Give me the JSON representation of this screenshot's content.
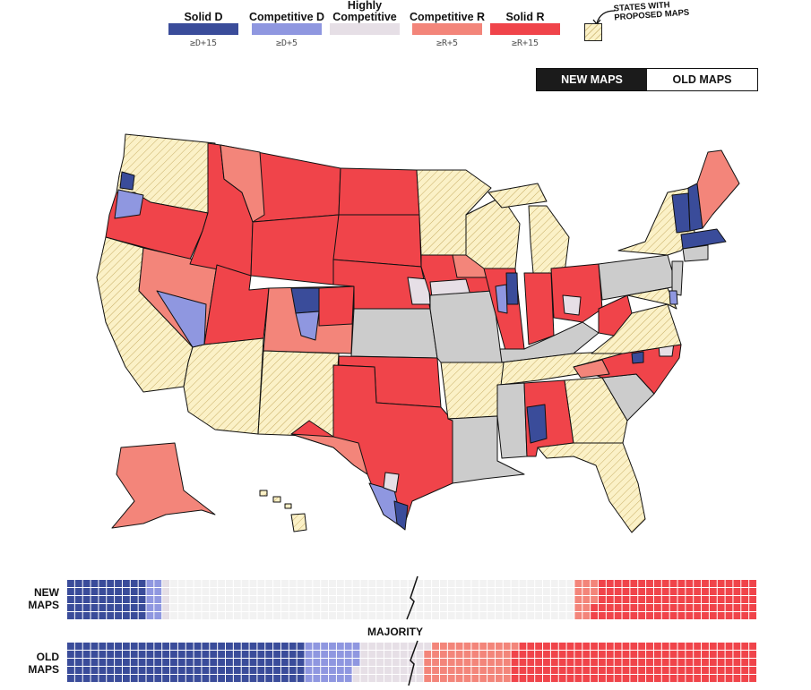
{
  "legend": {
    "items": [
      {
        "label": "Solid D",
        "threshold": "≥D+15",
        "color": "#3a4c9a"
      },
      {
        "label": "Competitive D",
        "threshold": "≥D+5",
        "color": "#8f97e0"
      },
      {
        "label": "Highly Competitive",
        "threshold": "",
        "color": "#e6dfe6"
      },
      {
        "label": "Competitive R",
        "threshold": "≥R+5",
        "color": "#f3857a"
      },
      {
        "label": "Solid R",
        "threshold": "≥R+15",
        "color": "#f0444a"
      }
    ],
    "proposed_label": "STATES WITH PROPOSED MAPS",
    "proposed_color": "#fbf1c7"
  },
  "toggle": {
    "new_label": "NEW MAPS",
    "old_label": "OLD MAPS",
    "active": "new"
  },
  "map_colors": {
    "solid_d": "#3a4c9a",
    "comp_d": "#8f97e0",
    "highly": "#e6dfe6",
    "comp_r": "#f3857a",
    "solid_r": "#f0444a",
    "proposed": "#fbf1c7",
    "no_change": "#cccccc"
  },
  "states": {
    "solid_r": [
      "Montana",
      "Idaho",
      "Wyoming",
      "North Dakota",
      "South Dakota",
      "Nebraska",
      "Utah",
      "Oklahoma",
      "Kansas-area districts",
      "Indiana",
      "Ohio",
      "West Virginia",
      "Alabama",
      "Texas",
      "Iowa",
      "Illinois"
    ],
    "comp_r": [
      "Nevada",
      "Colorado",
      "Alaska",
      "Maine"
    ],
    "proposed": [
      "Washington",
      "California",
      "Arizona",
      "New Mexico",
      "Minnesota",
      "Wisconsin",
      "Michigan",
      "Arkansas",
      "Tennessee",
      "Georgia",
      "Florida",
      "Virginia",
      "New York",
      "Hawaii"
    ],
    "no_change": [
      "Kansas",
      "Missouri",
      "Kentucky",
      "Pennsylvania",
      "Louisiana",
      "Mississippi",
      "South Carolina"
    ],
    "solid_d": [
      "Vermont",
      "Massachusetts"
    ]
  },
  "bars": {
    "new": {
      "label": "NEW MAPS",
      "counts": {
        "solid_d": 50,
        "comp_d": 10,
        "highly": 5,
        "proposed": 255,
        "comp_r": 13,
        "solid_r": 102
      }
    },
    "old": {
      "label": "OLD MAPS",
      "counts": {
        "solid_d": 150,
        "comp_d": 33,
        "highly": 43,
        "comp_r": 55,
        "solid_r": 154
      }
    },
    "majority_label": "MAJORITY"
  }
}
